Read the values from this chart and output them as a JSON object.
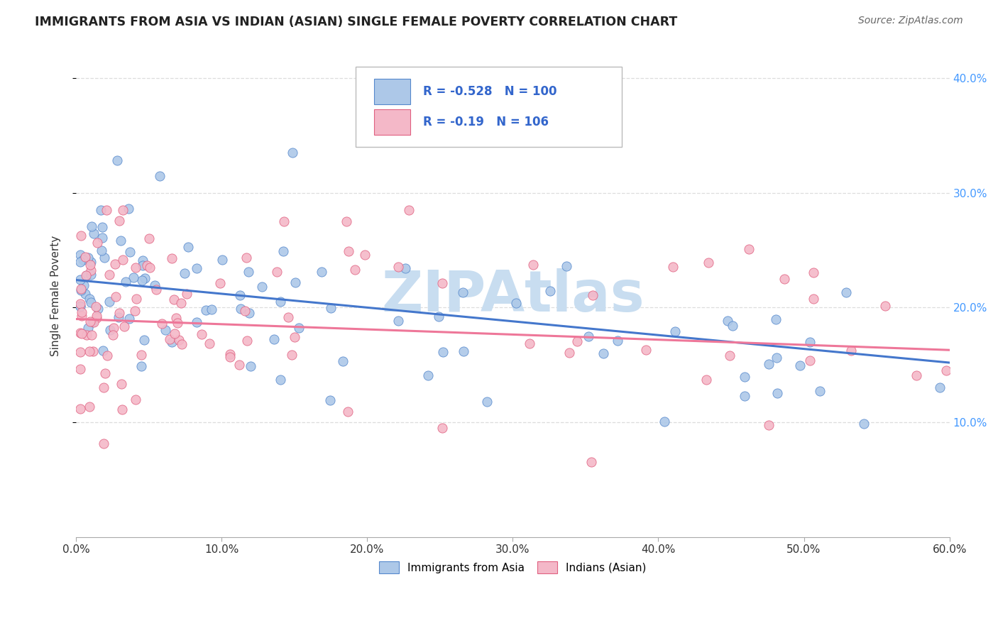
{
  "title": "IMMIGRANTS FROM ASIA VS INDIAN (ASIAN) SINGLE FEMALE POVERTY CORRELATION CHART",
  "source": "Source: ZipAtlas.com",
  "ylabel": "Single Female Poverty",
  "legend_label1": "Immigrants from Asia",
  "legend_label2": "Indians (Asian)",
  "R1": -0.528,
  "N1": 100,
  "R2": -0.19,
  "N2": 106,
  "color1": "#adc8e8",
  "color2": "#f4b8c8",
  "edge_color1": "#5588cc",
  "edge_color2": "#e06080",
  "line_color1": "#4477cc",
  "line_color2": "#ee7799",
  "watermark_color": "#c8ddf0",
  "watermark_text": "ZIPAtlas",
  "title_color": "#222222",
  "source_color": "#666666",
  "tick_color_right": "#4499ff",
  "tick_color_x": "#333333",
  "ylabel_color": "#333333",
  "grid_color": "#dddddd",
  "legend_box_edge": "#bbbbbb",
  "legend_text_color": "#3366cc",
  "x_min": 0.0,
  "x_max": 0.6,
  "y_min": 0.0,
  "y_max": 0.42,
  "x_ticks": [
    0.0,
    0.1,
    0.2,
    0.3,
    0.4,
    0.5,
    0.6
  ],
  "y_ticks": [
    0.1,
    0.2,
    0.3,
    0.4
  ],
  "seed1": 42,
  "seed2": 99
}
